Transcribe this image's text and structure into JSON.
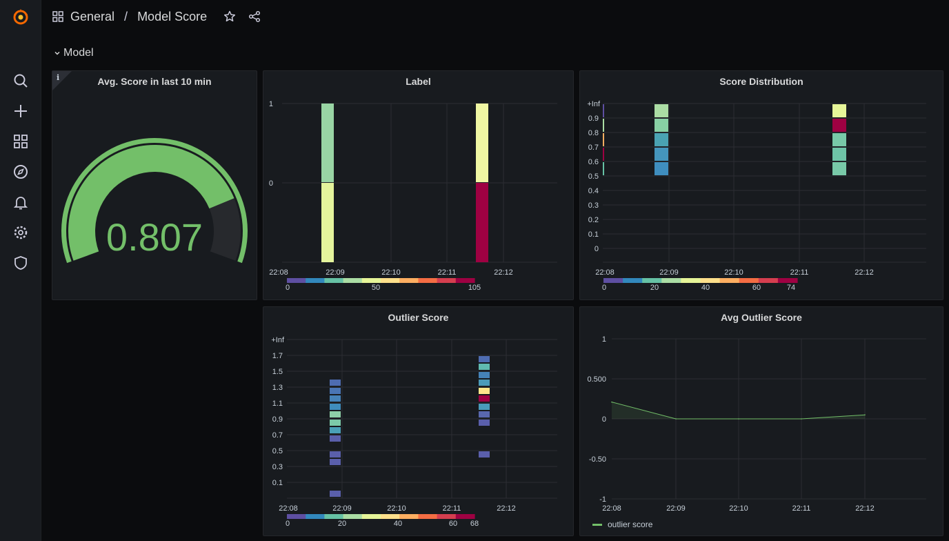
{
  "nav": {
    "breadcrumb_folder": "General",
    "breadcrumb_separator": "/",
    "dashboard_title": "Model Score"
  },
  "row": {
    "title": "Model"
  },
  "colors": {
    "green": "#73bf69",
    "track": "#27292d",
    "grid": "#2c2e33",
    "brand": "#f46800"
  },
  "panels": {
    "gauge": {
      "title": "Avg. Score in last 10 min",
      "value": "0.807",
      "fraction": 0.807,
      "info_icon": "i"
    },
    "label": {
      "title": "Label",
      "y_ticks": [
        "1",
        "0"
      ],
      "x_ticks": [
        "22:08",
        "22:09",
        "22:10",
        "22:11",
        "22:12"
      ],
      "legend_ticks": [
        "0",
        "50",
        "105"
      ]
    },
    "score_dist": {
      "title": "Score Distribution",
      "y_ticks": [
        "+Inf",
        "0.9",
        "0.8",
        "0.7",
        "0.6",
        "0.5",
        "0.4",
        "0.3",
        "0.2",
        "0.1",
        "0"
      ],
      "x_ticks": [
        "22:08",
        "22:09",
        "22:10",
        "22:11",
        "22:12"
      ],
      "legend_ticks": [
        "0",
        "20",
        "40",
        "60",
        "74"
      ]
    },
    "outlier": {
      "title": "Outlier Score",
      "y_ticks": [
        "+Inf",
        "1.7",
        "1.5",
        "1.3",
        "1.1",
        "0.9",
        "0.7",
        "0.5",
        "0.3",
        "0.1"
      ],
      "x_ticks": [
        "22:08",
        "22:09",
        "22:10",
        "22:11",
        "22:12"
      ],
      "legend_ticks": [
        "0",
        "20",
        "40",
        "60",
        "68"
      ]
    },
    "avg_outlier": {
      "title": "Avg Outlier Score",
      "legend_label": "outlier score",
      "chart_data": {
        "type": "line",
        "title": "Avg Outlier Score",
        "x": [
          "22:08",
          "22:09",
          "22:10",
          "22:11",
          "22:12"
        ],
        "series": [
          {
            "name": "outlier score",
            "values": [
              0.21,
              0.0,
              0.0,
              0.0,
              0.05
            ]
          }
        ],
        "y_ticks": [
          "1",
          "0.500",
          "0",
          "-0.50",
          "-1"
        ],
        "ylim": [
          -1,
          1
        ],
        "legend": "bottom-left"
      }
    }
  }
}
